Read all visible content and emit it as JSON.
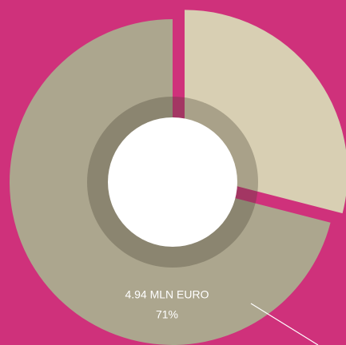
{
  "chart_data": {
    "type": "pie",
    "donut": true,
    "categories": [
      null,
      null
    ],
    "values": [
      29,
      71
    ],
    "value_labels": [
      null,
      "71%"
    ],
    "labels": [
      null,
      "4.94 MLN EURO"
    ],
    "colors": [
      "#d8cfb3",
      "#aca68e"
    ],
    "explode": [
      true,
      false
    ]
  }
}
